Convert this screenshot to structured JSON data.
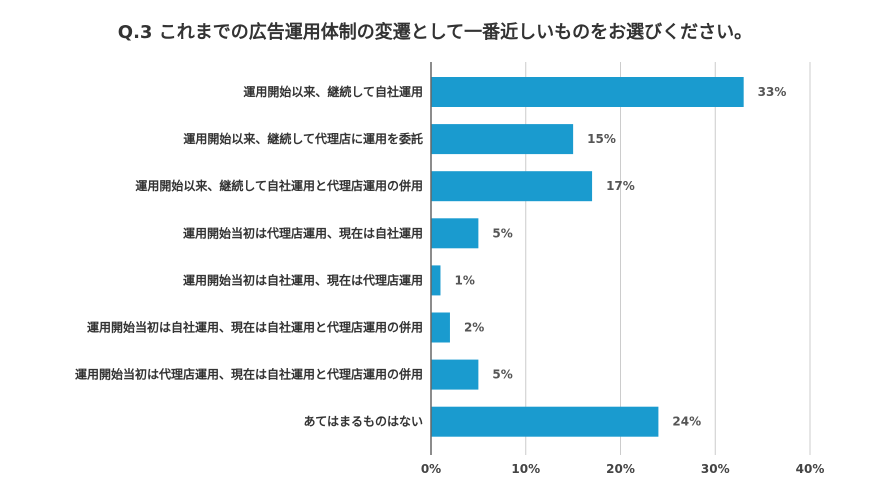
{
  "chart_data": {
    "type": "bar",
    "orientation": "horizontal",
    "title": "Q.3 これまでの広告運用体制の変遷として一番近しいものをお選びください。",
    "categories": [
      "運用開始以来、継続して自社運用",
      "運用開始以来、継続して代理店に運用を委託",
      "運用開始以来、継続して自社運用と代理店運用の併用",
      "運用開始当初は代理店運用、現在は自社運用",
      "運用開始当初は自社運用、現在は代理店運用",
      "運用開始当初は自社運用、現在は自社運用と代理店運用の併用",
      "運用開始当初は代理店運用、現在は自社運用と代理店運用の併用",
      "あてはまるものはない"
    ],
    "values": [
      33,
      15,
      17,
      5,
      1,
      2,
      5,
      24
    ],
    "value_labels": [
      "33%",
      "15%",
      "17%",
      "5%",
      "1%",
      "2%",
      "5%",
      "24%"
    ],
    "xlim": [
      0,
      40
    ],
    "x_ticks": [
      0,
      10,
      20,
      30,
      40
    ],
    "x_tick_labels": [
      "0%",
      "10%",
      "20%",
      "30%",
      "40%"
    ],
    "grid": true,
    "bar_color": "#1a9bcf",
    "grid_color": "#cccccc",
    "axis_color": "#666666"
  }
}
